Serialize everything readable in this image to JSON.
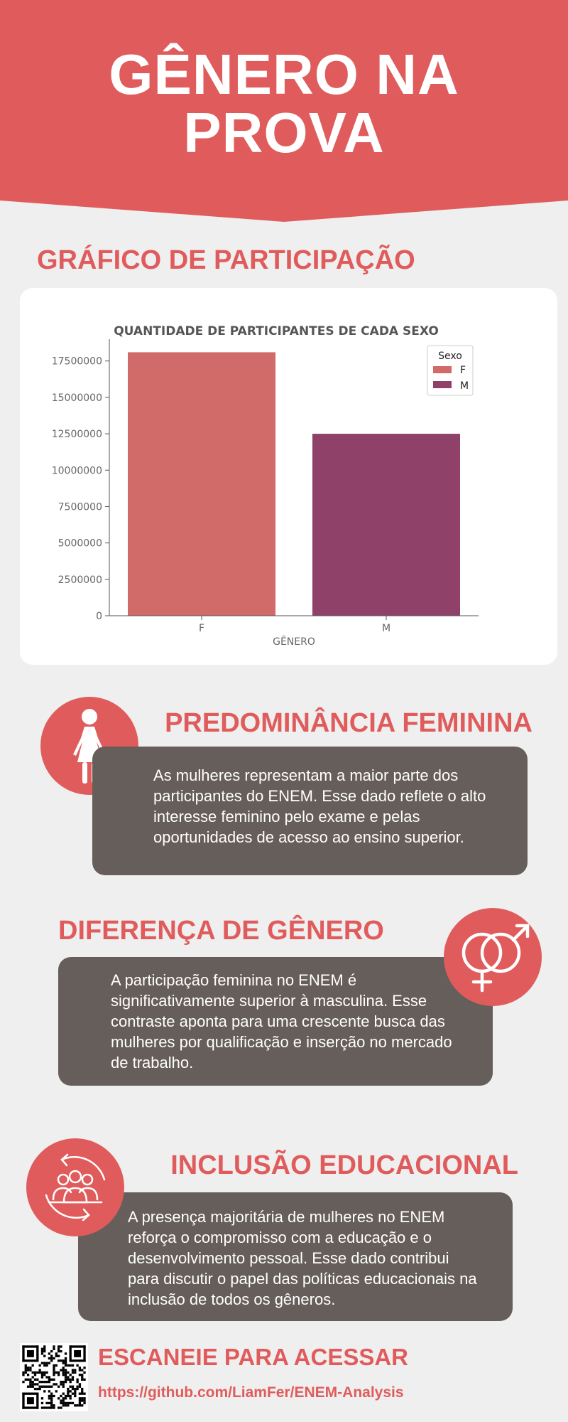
{
  "header": {
    "title_line1": "GÊNERO NA",
    "title_line2": "PROVA"
  },
  "chart_section": {
    "heading": "GRÁFICO DE PARTICIPAÇÃO"
  },
  "chart_data": {
    "type": "bar",
    "title": "QUANTIDADE DE PARTICIPANTES DE CADA SEXO",
    "xlabel": "GÊNERO",
    "ylabel": "",
    "categories": [
      "F",
      "M"
    ],
    "values": [
      18100000,
      12500000
    ],
    "ylim": [
      0,
      19000000
    ],
    "yticks": [
      0,
      2500000,
      5000000,
      7500000,
      10000000,
      12500000,
      15000000,
      17500000
    ],
    "legend": {
      "title": "Sexo",
      "placement": "top-right",
      "entries": [
        "F",
        "M"
      ]
    },
    "colors": [
      "#d16b69",
      "#8f4169"
    ],
    "grid": false
  },
  "sections": [
    {
      "heading": "PREDOMINÂNCIA FEMININA",
      "icon": "female-icon",
      "text": "As mulheres representam a maior parte dos participantes do ENEM. Esse dado reflete o alto interesse feminino pelo exame e pelas oportunidades de acesso ao ensino superior."
    },
    {
      "heading": "DIFERENÇA DE GÊNERO",
      "icon": "gender-symbols-icon",
      "text": "A participação feminina no ENEM é significativamente superior à masculina. Esse contraste aponta para uma crescente busca das mulheres por qualificação e inserção no mercado de trabalho."
    },
    {
      "heading": "INCLUSÃO EDUCACIONAL",
      "icon": "group-inclusion-icon",
      "text": "A presença majoritária de mulheres no ENEM reforça o compromisso com a educação e o desenvolvimento pessoal. Esse dado contribui para discutir o papel das políticas educacionais na inclusão de todos os gêneros."
    }
  ],
  "footer": {
    "scan_title": "ESCANEIE PARA ACESSAR",
    "url": "https://github.com/LiamFer/ENEM-Analysis",
    "qr_icon": "qr-code-icon"
  },
  "colors": {
    "accent": "#e05c5c",
    "box": "#665e5a",
    "background": "#efefef"
  }
}
